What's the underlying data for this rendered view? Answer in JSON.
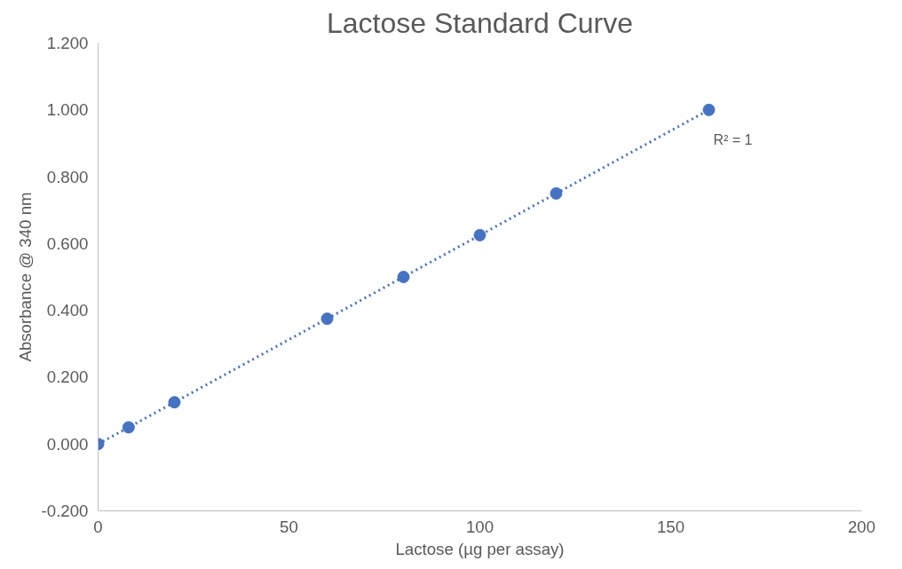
{
  "chart_data": {
    "type": "scatter",
    "title": "Lactose Standard Curve",
    "xlabel": "Lactose (µg per assay)",
    "ylabel": "Absorbance @ 340 nm",
    "x": [
      0,
      8,
      20,
      60,
      80,
      100,
      120,
      160
    ],
    "series": [
      {
        "color": "#4472c4",
        "marker": "circle",
        "values": [
          0,
          0.05,
          0.125,
          0.375,
          0.5,
          0.625,
          0.75,
          1.0
        ]
      },
      {
        "type": "line",
        "x": [
          0,
          160
        ],
        "values": [
          0,
          1.0
        ],
        "color": "#4472c4",
        "line_style": "dotted"
      }
    ],
    "annotations": [
      {
        "text": "R² = 1",
        "x": 160,
        "y": 1.0
      }
    ],
    "xlim": [
      0,
      200
    ],
    "xticks": [
      0,
      50,
      100,
      150,
      200
    ],
    "ylim": [
      -0.2,
      1.2
    ],
    "yticks": [
      {
        "value": -0.2,
        "label": "-0.200"
      },
      {
        "value": 0,
        "label": "0.000"
      },
      {
        "value": 0.2,
        "label": "0.200"
      },
      {
        "value": 0.4,
        "label": "0.400"
      },
      {
        "value": 0.6,
        "label": "0.600"
      },
      {
        "value": 0.8,
        "label": "0.800"
      },
      {
        "value": 1.0,
        "label": "1.000"
      },
      {
        "value": 1.2,
        "label": "1.200"
      }
    ],
    "grid": false
  }
}
